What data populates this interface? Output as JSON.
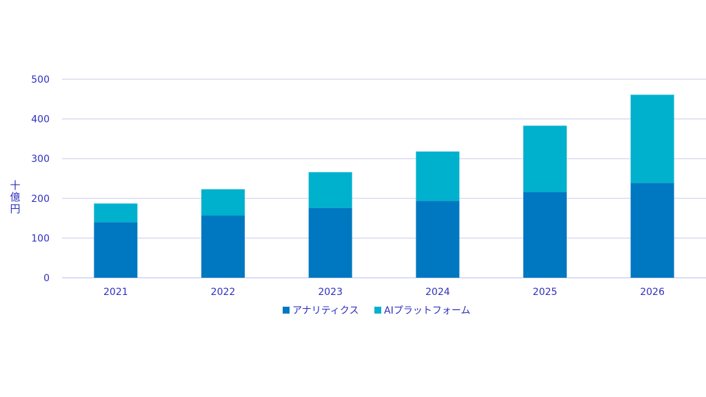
{
  "chart_data": {
    "type": "bar",
    "stacked": true,
    "title": "",
    "xlabel": "",
    "ylabel": "十億円",
    "ylim": [
      0,
      500
    ],
    "yticks": [
      0,
      100,
      200,
      300,
      400,
      500
    ],
    "grid": true,
    "legend_position": "bottom-center",
    "categories": [
      "2021",
      "2022",
      "2023",
      "2024",
      "2025",
      "2026"
    ],
    "series": [
      {
        "name": "アナリティクス",
        "color": "#0078c1",
        "values": [
          140,
          157,
          176,
          194,
          216,
          239
        ]
      },
      {
        "name": "AIプラットフォーム",
        "color": "#00b1cd",
        "values": [
          47,
          66,
          90,
          124,
          167,
          222
        ]
      }
    ]
  }
}
